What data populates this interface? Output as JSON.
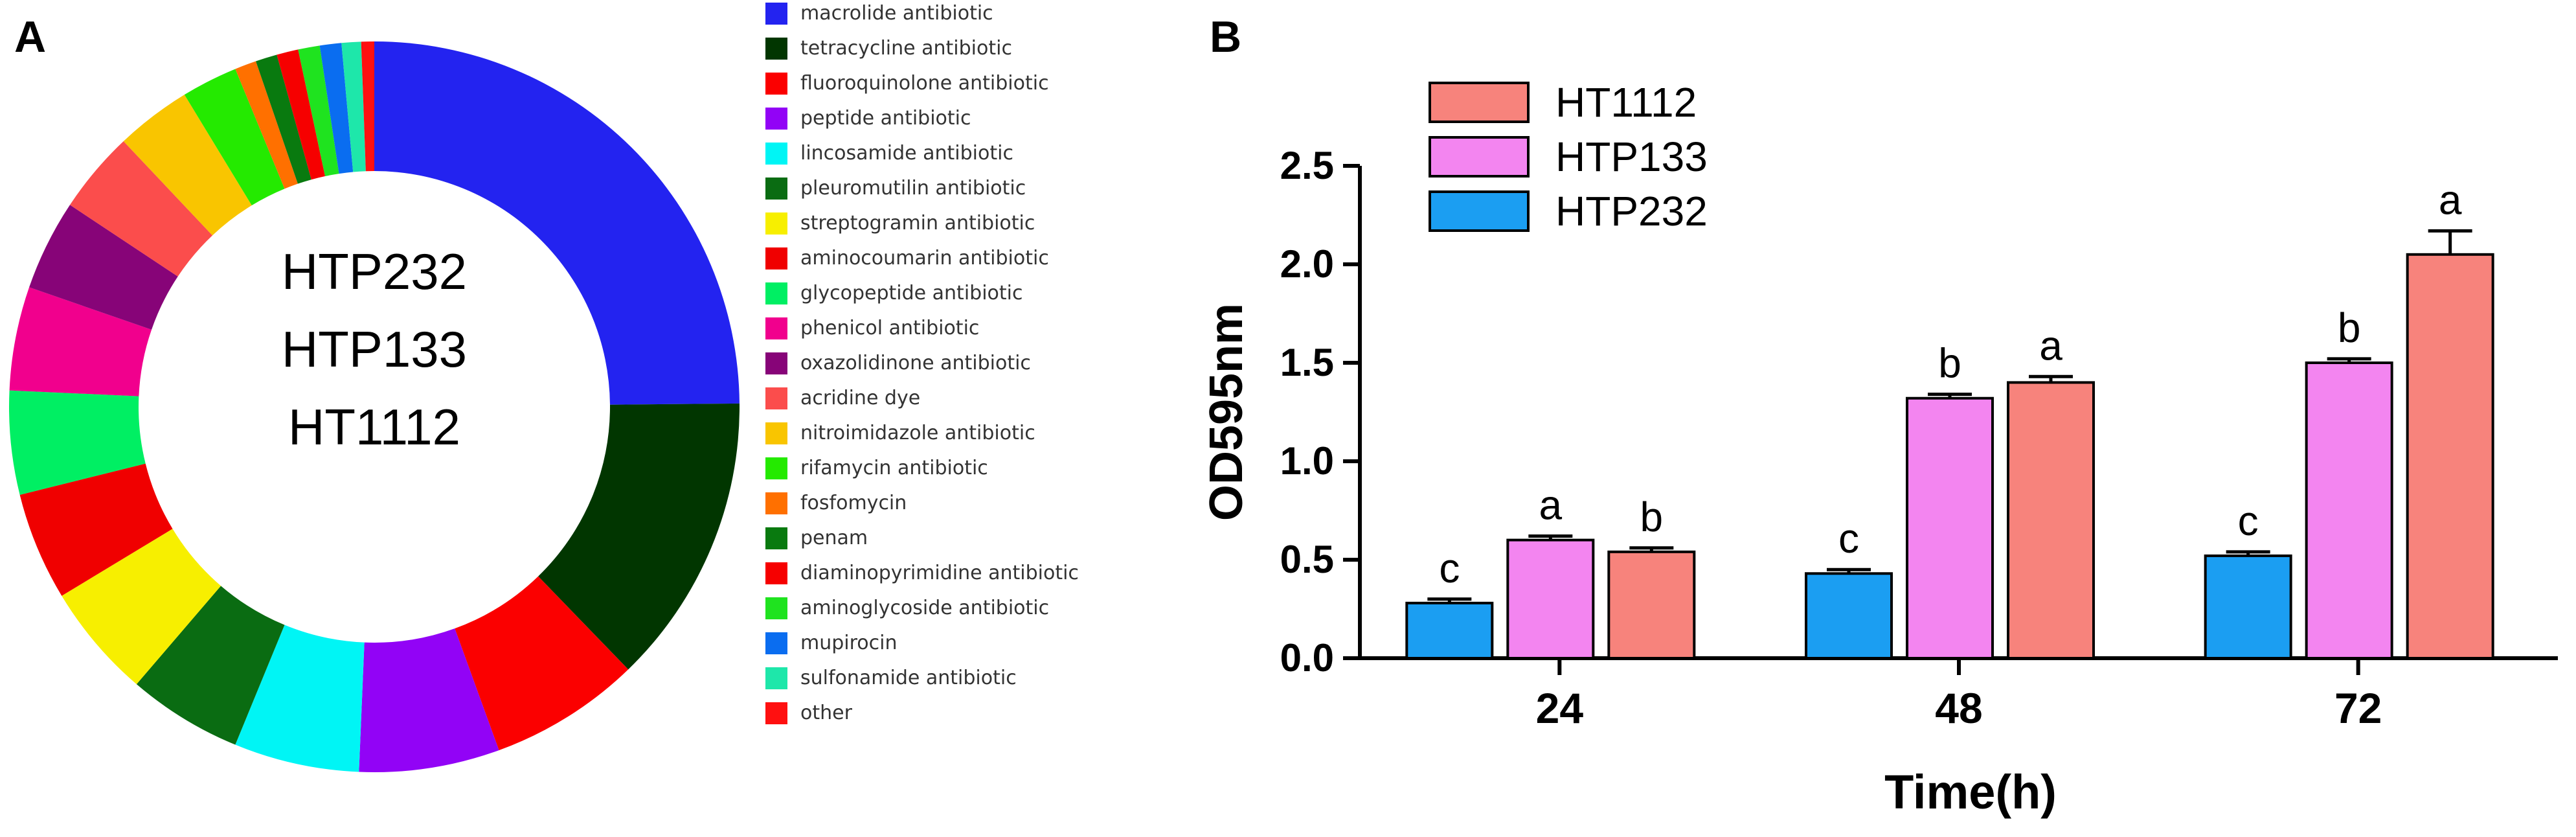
{
  "panel_a": {
    "letter": "A",
    "center_labels": [
      "HTP232",
      "HTP133",
      "HT1112"
    ]
  },
  "panel_b": {
    "letter": "B"
  },
  "chart_data": [
    {
      "type": "pie",
      "variant": "donut",
      "center_labels": [
        "HTP232",
        "HTP133",
        "HT1112"
      ],
      "legend_placement": "right",
      "slices": [
        {
          "label": "macrolide antibiotic",
          "value": 26.0,
          "color": "#2323f0"
        },
        {
          "label": "tetracycline antibiotic",
          "value": 13.5,
          "color": "#013600"
        },
        {
          "label": "fluoroquinolone antibiotic",
          "value": 7.0,
          "color": "#fb0000"
        },
        {
          "label": "peptide antibiotic",
          "value": 6.5,
          "color": "#9203f6"
        },
        {
          "label": "lincosamide antibiotic",
          "value": 5.8,
          "color": "#00f5f5"
        },
        {
          "label": "pleuromutilin antibiotic",
          "value": 5.3,
          "color": "#0a6c12"
        },
        {
          "label": "streptogramin antibiotic",
          "value": 5.3,
          "color": "#f7ef00"
        },
        {
          "label": "aminocoumarin antibiotic",
          "value": 5.0,
          "color": "#f00000"
        },
        {
          "label": "glycopeptide antibiotic",
          "value": 4.8,
          "color": "#00ef63"
        },
        {
          "label": "phenicol antibiotic",
          "value": 4.8,
          "color": "#f1008d"
        },
        {
          "label": "oxazolidinone antibiotic",
          "value": 4.2,
          "color": "#870478"
        },
        {
          "label": "acridine dye",
          "value": 3.8,
          "color": "#fb4d4c"
        },
        {
          "label": "nitroimidazole antibiotic",
          "value": 3.5,
          "color": "#f9c500"
        },
        {
          "label": "rifamycin antibiotic",
          "value": 2.6,
          "color": "#24ea00"
        },
        {
          "label": "fosfomycin",
          "value": 1.0,
          "color": "#ff7000"
        },
        {
          "label": "penam",
          "value": 1.0,
          "color": "#097a0f"
        },
        {
          "label": "diaminopyrimidine antibiotic",
          "value": 1.0,
          "color": "#f60000"
        },
        {
          "label": "aminoglycoside antibiotic",
          "value": 1.0,
          "color": "#1fe31f"
        },
        {
          "label": "mupirocin",
          "value": 1.0,
          "color": "#0a6df0"
        },
        {
          "label": "sulfonamide antibiotic",
          "value": 0.9,
          "color": "#1ee7aa"
        },
        {
          "label": "other",
          "value": 0.6,
          "color": "#ff1010"
        }
      ]
    },
    {
      "type": "bar",
      "xlabel": "Time(h)",
      "ylabel": "OD595nm",
      "categories": [
        "24",
        "48",
        "72"
      ],
      "ylim": [
        0,
        2.5
      ],
      "yticks": [
        "0.0",
        "0.5",
        "1.0",
        "1.5",
        "2.0",
        "2.5"
      ],
      "grid": false,
      "legend_placement": "top-left",
      "series": [
        {
          "name": "HTP232",
          "color": "#1b9ef2",
          "values": [
            0.28,
            0.43,
            0.52
          ],
          "errors": [
            0.02,
            0.02,
            0.02
          ],
          "letters": [
            "c",
            "c",
            "c"
          ]
        },
        {
          "name": "HTP133",
          "color": "#f385f0",
          "values": [
            0.6,
            1.32,
            1.5
          ],
          "errors": [
            0.02,
            0.02,
            0.02
          ],
          "letters": [
            "a",
            "b",
            "b"
          ]
        },
        {
          "name": "HT1112",
          "color": "#f7837c",
          "values": [
            0.54,
            1.4,
            2.05
          ],
          "errors": [
            0.02,
            0.03,
            0.12
          ],
          "letters": [
            "b",
            "a",
            "a"
          ]
        }
      ],
      "legend_order": [
        "HT1112",
        "HTP133",
        "HTP232"
      ]
    }
  ]
}
